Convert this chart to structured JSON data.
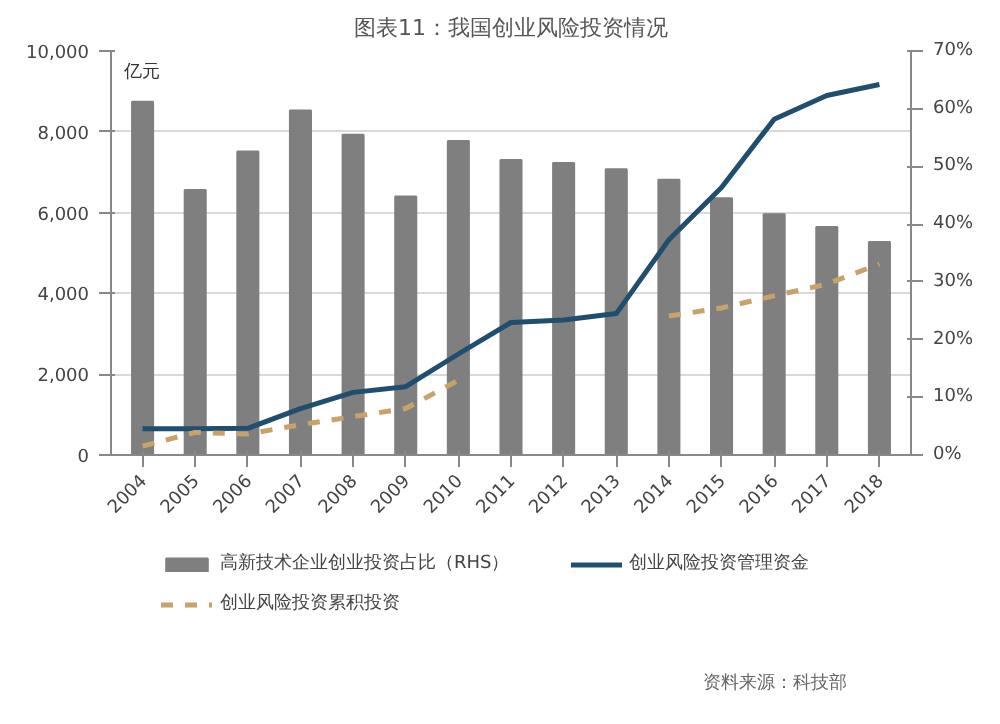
{
  "chart_data": {
    "type": "bar",
    "title": "图表11：我国创业风险投资情况",
    "ylabel": "亿元",
    "categories": [
      "2004",
      "2005",
      "2006",
      "2007",
      "2008",
      "2009",
      "2010",
      "2011",
      "2012",
      "2013",
      "2014",
      "2015",
      "2016",
      "2017",
      "2018"
    ],
    "series": [
      {
        "name": "高新技术企业创业投资占比（RHS）",
        "axis": "y2",
        "color": "#7f7f7f",
        "values": [
          61.2,
          45.9,
          52.6,
          59.7,
          55.5,
          44.8,
          54.4,
          51.1,
          50.6,
          49.5,
          47.7,
          44.5,
          41.7,
          39.5,
          36.9
        ]
      },
      {
        "name": "创业风险投资管理资金",
        "type": "line",
        "color": "#1f4e6e",
        "line_style": "solid",
        "values": [
          650,
          650,
          660,
          1150,
          1550,
          1690,
          2500,
          3280,
          3340,
          3500,
          5330,
          6620,
          8310,
          8900,
          9170
        ]
      },
      {
        "name": "创业风险投资累积投资",
        "type": "line",
        "color": "#c8a26b",
        "line_style": "dashed",
        "values": [
          220,
          560,
          520,
          750,
          950,
          1150,
          1850,
          null,
          null,
          null,
          3440,
          3640,
          3940,
          4230,
          4730
        ]
      }
    ],
    "ylim": [
      0,
      10000
    ],
    "yticks": [
      0,
      {
        "value": 2000,
        "label": "2,000"
      },
      {
        "value": 4000,
        "label": "4,000"
      },
      {
        "value": 6000,
        "label": "6,000"
      },
      {
        "value": 8000,
        "label": "8,000"
      },
      {
        "value": 10000,
        "label": "10,000"
      }
    ],
    "y2lim": [
      0,
      70
    ],
    "y2ticks": [
      {
        "value": 0,
        "label": "0%"
      },
      {
        "value": 10,
        "label": "10%"
      },
      {
        "value": 20,
        "label": "20%"
      },
      {
        "value": 30,
        "label": "30%"
      },
      {
        "value": 40,
        "label": "40%"
      },
      {
        "value": 50,
        "label": "50%"
      },
      {
        "value": 60,
        "label": "60%"
      },
      {
        "value": 70,
        "label": "70%"
      }
    ],
    "grid": "y",
    "legend": "bottom",
    "annotations": [
      "资料来源：科技部"
    ]
  }
}
